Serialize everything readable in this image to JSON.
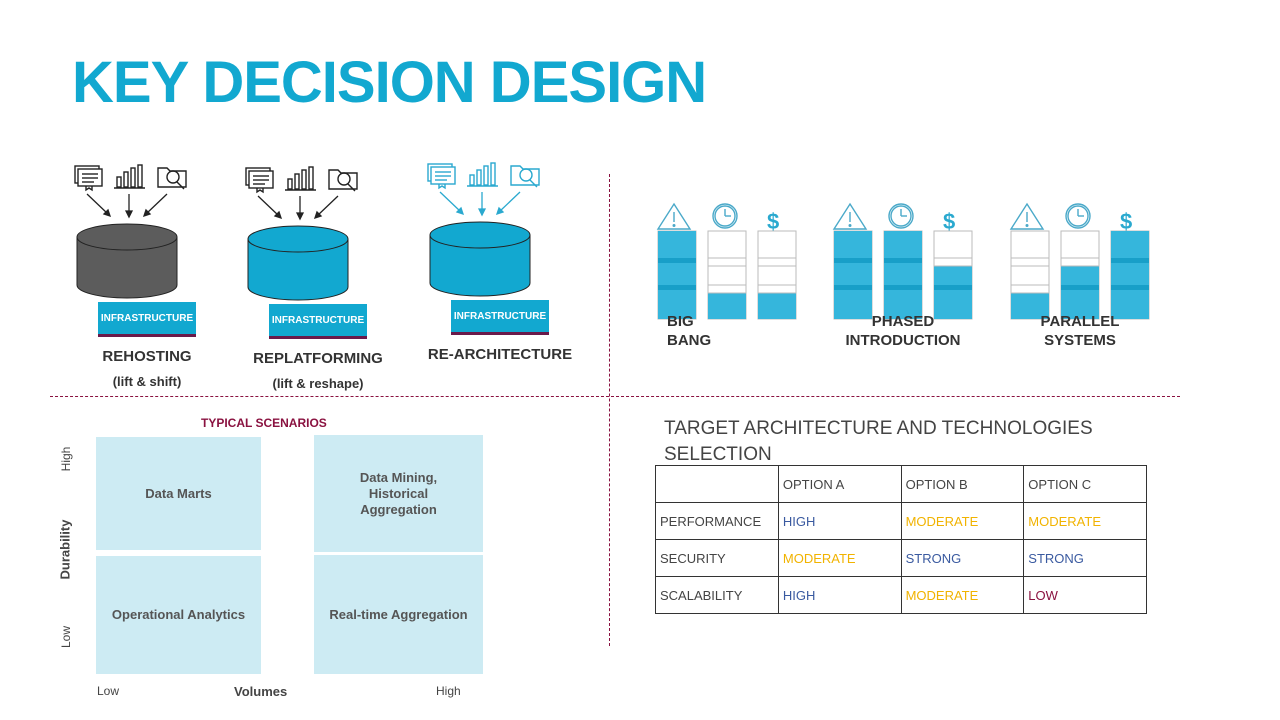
{
  "title": "KEY DECISION DESIGN",
  "strategies": [
    {
      "label": "INFRASTRUCTURE",
      "name": "REHOSTING",
      "sub": "(lift & shift)",
      "cylinder_color": "#5c5c5c",
      "icon_color": "#222222"
    },
    {
      "label": "INFRASTRUCTURE",
      "name": "REPLATFORMING",
      "sub": "(lift & reshape)",
      "cylinder_color": "#12a8d0",
      "icon_color": "#222222"
    },
    {
      "label": "INFRASTRUCTURE",
      "name": "RE-ARCHITECTURE",
      "sub": "",
      "cylinder_color": "#12a8d0",
      "icon_color": "#2aa9cf"
    }
  ],
  "deployment": [
    {
      "name_lines": [
        "BIG",
        "BANG"
      ],
      "align": "left"
    },
    {
      "name_lines": [
        "PHASED",
        "INTRODUCTION"
      ],
      "align": "center"
    },
    {
      "name_lines": [
        "PARALLEL",
        "SYSTEMS"
      ],
      "align": "center"
    }
  ],
  "deployment_icons": [
    "warning-icon",
    "clock-icon",
    "dollar-icon"
  ],
  "scenarios": {
    "title": "TYPICAL SCENARIOS",
    "y_axis": {
      "label": "Durability",
      "high": "High",
      "low": "Low"
    },
    "x_axis": {
      "label": "Volumes",
      "low": "Low",
      "high": "High"
    },
    "cells": [
      {
        "text": "Data Marts"
      },
      {
        "text": "Data Mining, Historical Aggregation"
      },
      {
        "text": "Operational Analytics"
      },
      {
        "text": "Real-time Aggregation"
      }
    ]
  },
  "target": {
    "title_line1": "TARGET ARCHITECTURE AND TECHNOLOGIES",
    "title_line2": "SELECTION",
    "headers": [
      "",
      "OPTION A",
      "OPTION B",
      "OPTION C"
    ],
    "rows": [
      {
        "label": "PERFORMANCE",
        "values": [
          "HIGH",
          "MODERATE",
          "MODERATE"
        ],
        "colors": [
          "#3a5aa0",
          "#f1b300",
          "#f1b300"
        ]
      },
      {
        "label": "SECURITY",
        "values": [
          "MODERATE",
          "STRONG",
          "STRONG"
        ],
        "colors": [
          "#f1b300",
          "#3a5aa0",
          "#3a5aa0"
        ]
      },
      {
        "label": "SCALABILITY",
        "values": [
          "HIGH",
          "MODERATE",
          "LOW"
        ],
        "colors": [
          "#3a5aa0",
          "#f1b300",
          "#8a1240"
        ]
      }
    ]
  },
  "colors": {
    "accent": "#12a8d0",
    "divider": "#8a1240",
    "cell_bg": "#cdebf3"
  }
}
